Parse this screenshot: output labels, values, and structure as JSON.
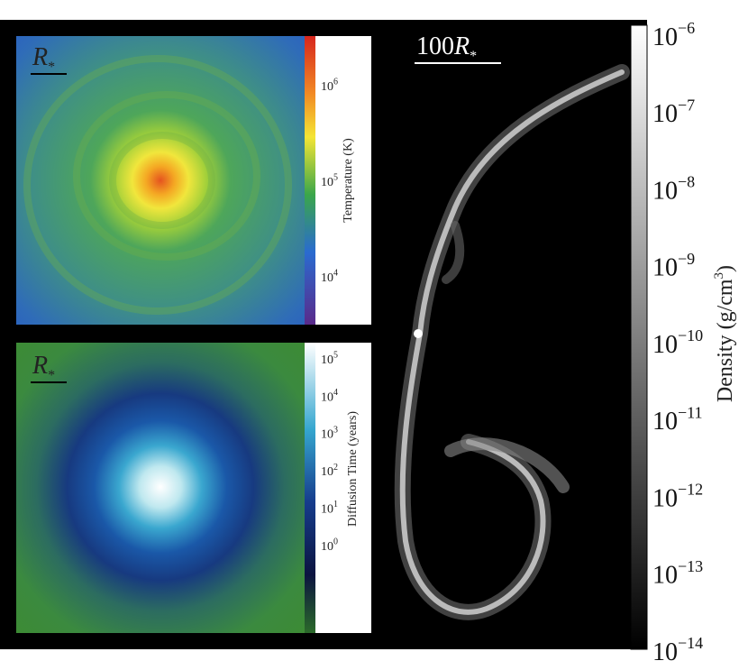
{
  "scale_label": {
    "number": "100",
    "symbol": "R",
    "subscript": "*"
  },
  "panels": [
    {
      "label": {
        "symbol": "R",
        "subscript": "*"
      }
    },
    {
      "label": {
        "symbol": "R",
        "subscript": "*"
      }
    }
  ],
  "colorbars": {
    "temperature": {
      "label": "Temperature  (K)",
      "ticks": [
        {
          "base": "10",
          "exp": "6"
        },
        {
          "base": "10",
          "exp": "5"
        },
        {
          "base": "10",
          "exp": "4"
        }
      ]
    },
    "diffusion": {
      "label": "Diffusion Time  (years)",
      "ticks": [
        {
          "base": "10",
          "exp": "5"
        },
        {
          "base": "10",
          "exp": "4"
        },
        {
          "base": "10",
          "exp": "3"
        },
        {
          "base": "10",
          "exp": "2"
        },
        {
          "base": "10",
          "exp": "1"
        },
        {
          "base": "10",
          "exp": "0"
        }
      ]
    },
    "density": {
      "label": "Density  (g/cm",
      "label_sup": "3",
      "label_close": ")",
      "ticks": [
        {
          "base": "10",
          "exp": "−6"
        },
        {
          "base": "10",
          "exp": "−7"
        },
        {
          "base": "10",
          "exp": "−8"
        },
        {
          "base": "10",
          "exp": "−9"
        },
        {
          "base": "10",
          "exp": "−10"
        },
        {
          "base": "10",
          "exp": "−11"
        },
        {
          "base": "10",
          "exp": "−12"
        },
        {
          "base": "10",
          "exp": "−13"
        },
        {
          "base": "10",
          "exp": "−14"
        }
      ]
    }
  }
}
